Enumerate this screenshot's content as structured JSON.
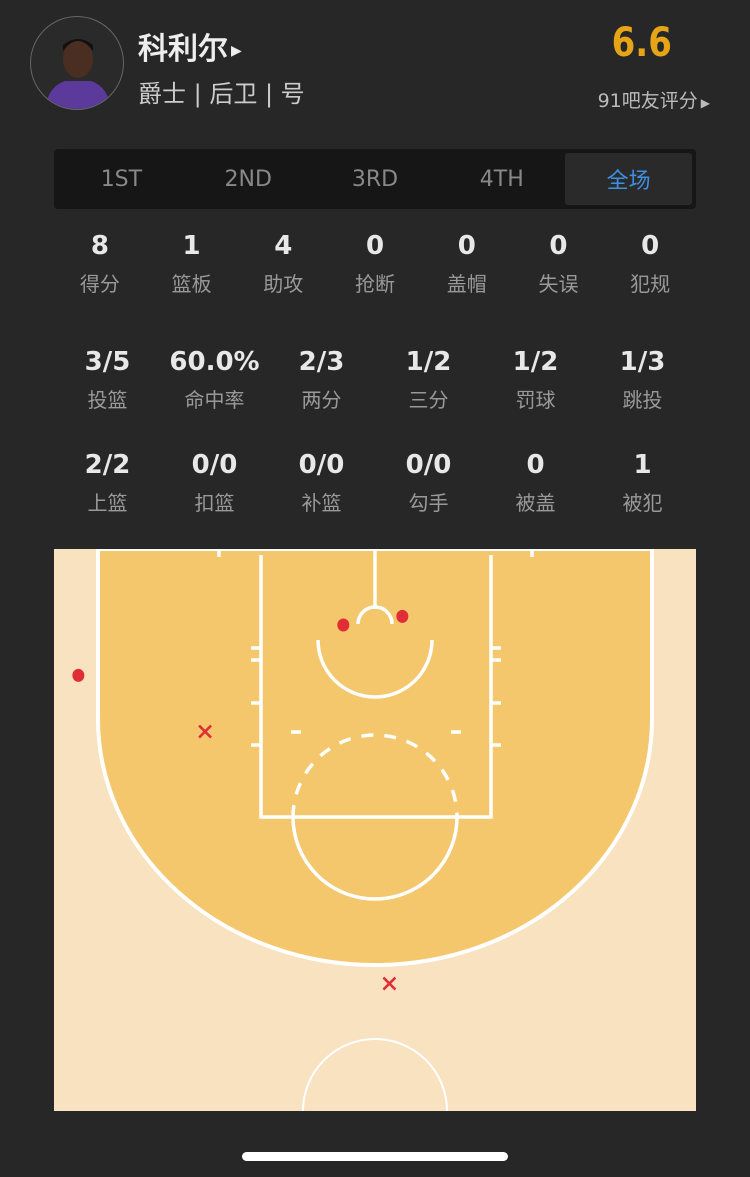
{
  "player": {
    "name": "科利尔",
    "team_position": "爵士 | 后卫 | 号",
    "rating": "6.6",
    "rating_count_label": "91吧友评分"
  },
  "tabs": [
    {
      "label": "1ST",
      "active": false
    },
    {
      "label": "2ND",
      "active": false
    },
    {
      "label": "3RD",
      "active": false
    },
    {
      "label": "4TH",
      "active": false
    },
    {
      "label": "全场",
      "active": true
    }
  ],
  "stats_row1": [
    {
      "value": "8",
      "label": "得分"
    },
    {
      "value": "1",
      "label": "篮板"
    },
    {
      "value": "4",
      "label": "助攻"
    },
    {
      "value": "0",
      "label": "抢断"
    },
    {
      "value": "0",
      "label": "盖帽"
    },
    {
      "value": "0",
      "label": "失误"
    },
    {
      "value": "0",
      "label": "犯规"
    }
  ],
  "stats_row2": [
    {
      "value": "3/5",
      "label": "投篮"
    },
    {
      "value": "60.0%",
      "label": "命中率"
    },
    {
      "value": "2/3",
      "label": "两分"
    },
    {
      "value": "1/2",
      "label": "三分"
    },
    {
      "value": "1/2",
      "label": "罚球"
    },
    {
      "value": "1/3",
      "label": "跳投"
    }
  ],
  "stats_row3": [
    {
      "value": "2/2",
      "label": "上篮"
    },
    {
      "value": "0/0",
      "label": "扣篮"
    },
    {
      "value": "0/0",
      "label": "补篮"
    },
    {
      "value": "0/0",
      "label": "勾手"
    },
    {
      "value": "0",
      "label": "被盖"
    },
    {
      "value": "1",
      "label": "被犯"
    }
  ],
  "colors": {
    "rating": "#e6a516",
    "active_tab": "#3d8fe0",
    "paint": "#f5c76d",
    "court": "#f8e2c0",
    "shot": "#e02d36"
  },
  "shots": [
    {
      "result": "made",
      "x_ft": -20.6,
      "y_ft": 3.5
    },
    {
      "result": "made",
      "x_ft": -2.2,
      "y_ft": 0
    },
    {
      "result": "made",
      "x_ft": 1.9,
      "y_ft": -0.6
    },
    {
      "result": "missed",
      "x_ft": -11.8,
      "y_ft": 7.4
    },
    {
      "result": "missed",
      "x_ft": 1.0,
      "y_ft": 24.9
    }
  ]
}
